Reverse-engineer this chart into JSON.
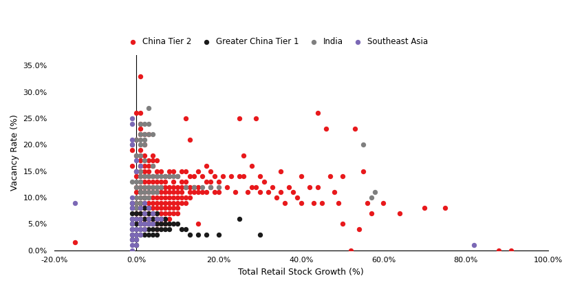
{
  "xlabel": "Total Retail Stock Growth (%)",
  "ylabel": "Vacancy Rate (%)",
  "xlim": [
    -0.2,
    1.0
  ],
  "ylim": [
    0.0,
    0.37
  ],
  "xticks": [
    -0.2,
    0.0,
    0.2,
    0.4,
    0.6,
    0.8,
    1.0
  ],
  "yticks": [
    0.0,
    0.05,
    0.1,
    0.15,
    0.2,
    0.25,
    0.3,
    0.35
  ],
  "vline_x": 0.0,
  "legend": [
    {
      "label": "China Tier 2",
      "color": "#e8191c"
    },
    {
      "label": "Greater China Tier 1",
      "color": "#1a1a1a"
    },
    {
      "label": "India",
      "color": "#7f7f7f"
    },
    {
      "label": "Southeast Asia",
      "color": "#7b68b5"
    }
  ],
  "china_tier2": [
    [
      -0.15,
      0.015
    ],
    [
      -0.01,
      0.16
    ],
    [
      -0.01,
      0.19
    ],
    [
      0.0,
      0.26
    ],
    [
      0.0,
      0.21
    ],
    [
      0.0,
      0.15
    ],
    [
      0.0,
      0.18
    ],
    [
      0.0,
      0.14
    ],
    [
      0.0,
      0.12
    ],
    [
      0.0,
      0.11
    ],
    [
      0.0,
      0.09
    ],
    [
      0.0,
      0.07
    ],
    [
      0.0,
      0.06
    ],
    [
      0.01,
      0.33
    ],
    [
      0.01,
      0.26
    ],
    [
      0.01,
      0.24
    ],
    [
      0.01,
      0.23
    ],
    [
      0.01,
      0.22
    ],
    [
      0.01,
      0.19
    ],
    [
      0.01,
      0.18
    ],
    [
      0.01,
      0.17
    ],
    [
      0.01,
      0.16
    ],
    [
      0.01,
      0.15
    ],
    [
      0.01,
      0.14
    ],
    [
      0.01,
      0.13
    ],
    [
      0.01,
      0.12
    ],
    [
      0.01,
      0.11
    ],
    [
      0.01,
      0.1
    ],
    [
      0.01,
      0.09
    ],
    [
      0.01,
      0.07
    ],
    [
      0.01,
      0.06
    ],
    [
      0.01,
      0.05
    ],
    [
      0.02,
      0.22
    ],
    [
      0.02,
      0.2
    ],
    [
      0.02,
      0.18
    ],
    [
      0.02,
      0.16
    ],
    [
      0.02,
      0.15
    ],
    [
      0.02,
      0.14
    ],
    [
      0.02,
      0.13
    ],
    [
      0.02,
      0.12
    ],
    [
      0.02,
      0.11
    ],
    [
      0.02,
      0.1
    ],
    [
      0.02,
      0.09
    ],
    [
      0.02,
      0.08
    ],
    [
      0.02,
      0.07
    ],
    [
      0.02,
      0.06
    ],
    [
      0.02,
      0.05
    ],
    [
      0.02,
      0.04
    ],
    [
      0.03,
      0.22
    ],
    [
      0.03,
      0.17
    ],
    [
      0.03,
      0.16
    ],
    [
      0.03,
      0.15
    ],
    [
      0.03,
      0.14
    ],
    [
      0.03,
      0.13
    ],
    [
      0.03,
      0.12
    ],
    [
      0.03,
      0.11
    ],
    [
      0.03,
      0.1
    ],
    [
      0.03,
      0.09
    ],
    [
      0.03,
      0.08
    ],
    [
      0.03,
      0.07
    ],
    [
      0.03,
      0.06
    ],
    [
      0.03,
      0.05
    ],
    [
      0.04,
      0.18
    ],
    [
      0.04,
      0.17
    ],
    [
      0.04,
      0.16
    ],
    [
      0.04,
      0.14
    ],
    [
      0.04,
      0.13
    ],
    [
      0.04,
      0.12
    ],
    [
      0.04,
      0.11
    ],
    [
      0.04,
      0.1
    ],
    [
      0.04,
      0.09
    ],
    [
      0.04,
      0.08
    ],
    [
      0.04,
      0.07
    ],
    [
      0.04,
      0.06
    ],
    [
      0.04,
      0.05
    ],
    [
      0.05,
      0.17
    ],
    [
      0.05,
      0.15
    ],
    [
      0.05,
      0.14
    ],
    [
      0.05,
      0.13
    ],
    [
      0.05,
      0.12
    ],
    [
      0.05,
      0.11
    ],
    [
      0.05,
      0.1
    ],
    [
      0.05,
      0.09
    ],
    [
      0.05,
      0.08
    ],
    [
      0.05,
      0.07
    ],
    [
      0.05,
      0.06
    ],
    [
      0.05,
      0.05
    ],
    [
      0.05,
      0.04
    ],
    [
      0.06,
      0.15
    ],
    [
      0.06,
      0.13
    ],
    [
      0.06,
      0.12
    ],
    [
      0.06,
      0.11
    ],
    [
      0.06,
      0.1
    ],
    [
      0.06,
      0.09
    ],
    [
      0.06,
      0.08
    ],
    [
      0.06,
      0.07
    ],
    [
      0.06,
      0.06
    ],
    [
      0.06,
      0.05
    ],
    [
      0.07,
      0.14
    ],
    [
      0.07,
      0.13
    ],
    [
      0.07,
      0.12
    ],
    [
      0.07,
      0.11
    ],
    [
      0.07,
      0.1
    ],
    [
      0.07,
      0.09
    ],
    [
      0.07,
      0.08
    ],
    [
      0.07,
      0.07
    ],
    [
      0.07,
      0.06
    ],
    [
      0.07,
      0.05
    ],
    [
      0.08,
      0.15
    ],
    [
      0.08,
      0.14
    ],
    [
      0.08,
      0.12
    ],
    [
      0.08,
      0.11
    ],
    [
      0.08,
      0.1
    ],
    [
      0.08,
      0.09
    ],
    [
      0.08,
      0.08
    ],
    [
      0.08,
      0.07
    ],
    [
      0.08,
      0.06
    ],
    [
      0.09,
      0.15
    ],
    [
      0.09,
      0.13
    ],
    [
      0.09,
      0.12
    ],
    [
      0.09,
      0.11
    ],
    [
      0.09,
      0.1
    ],
    [
      0.09,
      0.09
    ],
    [
      0.09,
      0.08
    ],
    [
      0.09,
      0.07
    ],
    [
      0.1,
      0.14
    ],
    [
      0.1,
      0.12
    ],
    [
      0.1,
      0.11
    ],
    [
      0.1,
      0.1
    ],
    [
      0.1,
      0.09
    ],
    [
      0.1,
      0.08
    ],
    [
      0.1,
      0.07
    ],
    [
      0.11,
      0.15
    ],
    [
      0.11,
      0.13
    ],
    [
      0.11,
      0.12
    ],
    [
      0.11,
      0.11
    ],
    [
      0.11,
      0.1
    ],
    [
      0.11,
      0.09
    ],
    [
      0.12,
      0.25
    ],
    [
      0.12,
      0.15
    ],
    [
      0.12,
      0.13
    ],
    [
      0.12,
      0.12
    ],
    [
      0.12,
      0.1
    ],
    [
      0.12,
      0.09
    ],
    [
      0.13,
      0.21
    ],
    [
      0.13,
      0.14
    ],
    [
      0.13,
      0.12
    ],
    [
      0.13,
      0.11
    ],
    [
      0.13,
      0.1
    ],
    [
      0.14,
      0.14
    ],
    [
      0.14,
      0.12
    ],
    [
      0.14,
      0.11
    ],
    [
      0.15,
      0.15
    ],
    [
      0.15,
      0.12
    ],
    [
      0.15,
      0.11
    ],
    [
      0.15,
      0.05
    ],
    [
      0.16,
      0.14
    ],
    [
      0.16,
      0.11
    ],
    [
      0.17,
      0.16
    ],
    [
      0.17,
      0.13
    ],
    [
      0.17,
      0.11
    ],
    [
      0.18,
      0.15
    ],
    [
      0.18,
      0.13
    ],
    [
      0.18,
      0.12
    ],
    [
      0.19,
      0.14
    ],
    [
      0.19,
      0.11
    ],
    [
      0.2,
      0.13
    ],
    [
      0.2,
      0.11
    ],
    [
      0.21,
      0.14
    ],
    [
      0.22,
      0.12
    ],
    [
      0.23,
      0.14
    ],
    [
      0.24,
      0.11
    ],
    [
      0.25,
      0.25
    ],
    [
      0.25,
      0.14
    ],
    [
      0.26,
      0.18
    ],
    [
      0.26,
      0.14
    ],
    [
      0.27,
      0.11
    ],
    [
      0.28,
      0.16
    ],
    [
      0.28,
      0.12
    ],
    [
      0.29,
      0.25
    ],
    [
      0.29,
      0.12
    ],
    [
      0.3,
      0.14
    ],
    [
      0.3,
      0.11
    ],
    [
      0.31,
      0.13
    ],
    [
      0.32,
      0.11
    ],
    [
      0.33,
      0.12
    ],
    [
      0.34,
      0.1
    ],
    [
      0.35,
      0.15
    ],
    [
      0.35,
      0.11
    ],
    [
      0.36,
      0.09
    ],
    [
      0.37,
      0.12
    ],
    [
      0.38,
      0.11
    ],
    [
      0.39,
      0.1
    ],
    [
      0.4,
      0.14
    ],
    [
      0.4,
      0.09
    ],
    [
      0.42,
      0.12
    ],
    [
      0.43,
      0.09
    ],
    [
      0.44,
      0.26
    ],
    [
      0.44,
      0.12
    ],
    [
      0.45,
      0.09
    ],
    [
      0.46,
      0.23
    ],
    [
      0.47,
      0.14
    ],
    [
      0.48,
      0.11
    ],
    [
      0.49,
      0.09
    ],
    [
      0.5,
      0.14
    ],
    [
      0.5,
      0.05
    ],
    [
      0.52,
      0.0
    ],
    [
      0.53,
      0.23
    ],
    [
      0.54,
      0.04
    ],
    [
      0.55,
      0.15
    ],
    [
      0.56,
      0.09
    ],
    [
      0.57,
      0.07
    ],
    [
      0.6,
      0.09
    ],
    [
      0.64,
      0.07
    ],
    [
      0.7,
      0.08
    ],
    [
      0.75,
      0.08
    ],
    [
      0.88,
      0.0
    ],
    [
      0.91,
      0.0
    ]
  ],
  "greater_china_tier1": [
    [
      -0.01,
      0.09
    ],
    [
      -0.01,
      0.08
    ],
    [
      -0.01,
      0.07
    ],
    [
      -0.01,
      0.06
    ],
    [
      -0.01,
      0.05
    ],
    [
      -0.01,
      0.04
    ],
    [
      -0.01,
      0.03
    ],
    [
      -0.01,
      0.02
    ],
    [
      0.0,
      0.08
    ],
    [
      0.0,
      0.07
    ],
    [
      0.0,
      0.06
    ],
    [
      0.0,
      0.05
    ],
    [
      0.0,
      0.04
    ],
    [
      0.0,
      0.03
    ],
    [
      0.0,
      0.02
    ],
    [
      0.0,
      0.01
    ],
    [
      0.01,
      0.11
    ],
    [
      0.01,
      0.09
    ],
    [
      0.01,
      0.08
    ],
    [
      0.01,
      0.07
    ],
    [
      0.01,
      0.06
    ],
    [
      0.01,
      0.05
    ],
    [
      0.01,
      0.04
    ],
    [
      0.01,
      0.03
    ],
    [
      0.02,
      0.1
    ],
    [
      0.02,
      0.08
    ],
    [
      0.02,
      0.07
    ],
    [
      0.02,
      0.06
    ],
    [
      0.02,
      0.05
    ],
    [
      0.02,
      0.04
    ],
    [
      0.02,
      0.03
    ],
    [
      0.03,
      0.08
    ],
    [
      0.03,
      0.07
    ],
    [
      0.03,
      0.06
    ],
    [
      0.03,
      0.05
    ],
    [
      0.03,
      0.04
    ],
    [
      0.03,
      0.03
    ],
    [
      0.04,
      0.07
    ],
    [
      0.04,
      0.06
    ],
    [
      0.04,
      0.05
    ],
    [
      0.04,
      0.04
    ],
    [
      0.04,
      0.03
    ],
    [
      0.05,
      0.07
    ],
    [
      0.05,
      0.06
    ],
    [
      0.05,
      0.05
    ],
    [
      0.05,
      0.04
    ],
    [
      0.05,
      0.03
    ],
    [
      0.06,
      0.06
    ],
    [
      0.06,
      0.05
    ],
    [
      0.06,
      0.04
    ],
    [
      0.07,
      0.06
    ],
    [
      0.07,
      0.05
    ],
    [
      0.07,
      0.04
    ],
    [
      0.08,
      0.05
    ],
    [
      0.08,
      0.04
    ],
    [
      0.09,
      0.05
    ],
    [
      0.1,
      0.05
    ],
    [
      0.11,
      0.04
    ],
    [
      0.12,
      0.04
    ],
    [
      0.13,
      0.03
    ],
    [
      0.15,
      0.03
    ],
    [
      0.17,
      0.03
    ],
    [
      0.2,
      0.03
    ],
    [
      0.25,
      0.06
    ],
    [
      0.3,
      0.03
    ]
  ],
  "india": [
    [
      -0.01,
      0.13
    ],
    [
      -0.01,
      0.2
    ],
    [
      0.0,
      0.21
    ],
    [
      0.0,
      0.18
    ],
    [
      0.0,
      0.15
    ],
    [
      0.0,
      0.13
    ],
    [
      0.0,
      0.12
    ],
    [
      0.0,
      0.1
    ],
    [
      0.0,
      0.09
    ],
    [
      0.0,
      0.08
    ],
    [
      0.01,
      0.24
    ],
    [
      0.01,
      0.22
    ],
    [
      0.01,
      0.21
    ],
    [
      0.01,
      0.2
    ],
    [
      0.01,
      0.18
    ],
    [
      0.01,
      0.16
    ],
    [
      0.01,
      0.15
    ],
    [
      0.01,
      0.14
    ],
    [
      0.01,
      0.13
    ],
    [
      0.01,
      0.12
    ],
    [
      0.01,
      0.11
    ],
    [
      0.01,
      0.1
    ],
    [
      0.01,
      0.09
    ],
    [
      0.02,
      0.24
    ],
    [
      0.02,
      0.22
    ],
    [
      0.02,
      0.21
    ],
    [
      0.02,
      0.2
    ],
    [
      0.02,
      0.17
    ],
    [
      0.02,
      0.14
    ],
    [
      0.02,
      0.12
    ],
    [
      0.02,
      0.11
    ],
    [
      0.02,
      0.1
    ],
    [
      0.03,
      0.27
    ],
    [
      0.03,
      0.24
    ],
    [
      0.03,
      0.22
    ],
    [
      0.03,
      0.14
    ],
    [
      0.03,
      0.12
    ],
    [
      0.03,
      0.11
    ],
    [
      0.03,
      0.1
    ],
    [
      0.04,
      0.22
    ],
    [
      0.04,
      0.16
    ],
    [
      0.04,
      0.14
    ],
    [
      0.04,
      0.12
    ],
    [
      0.04,
      0.11
    ],
    [
      0.05,
      0.14
    ],
    [
      0.05,
      0.12
    ],
    [
      0.05,
      0.11
    ],
    [
      0.06,
      0.14
    ],
    [
      0.06,
      0.12
    ],
    [
      0.07,
      0.14
    ],
    [
      0.08,
      0.14
    ],
    [
      0.09,
      0.14
    ],
    [
      0.1,
      0.14
    ],
    [
      0.12,
      0.12
    ],
    [
      0.14,
      0.12
    ],
    [
      0.16,
      0.12
    ],
    [
      0.18,
      0.12
    ],
    [
      0.2,
      0.12
    ],
    [
      0.55,
      0.2
    ],
    [
      0.57,
      0.1
    ],
    [
      0.58,
      0.11
    ]
  ],
  "southeast_asia": [
    [
      -0.15,
      0.09
    ],
    [
      -0.01,
      0.25
    ],
    [
      -0.01,
      0.24
    ],
    [
      -0.01,
      0.21
    ],
    [
      -0.01,
      0.2
    ],
    [
      -0.01,
      0.1
    ],
    [
      -0.01,
      0.09
    ],
    [
      -0.01,
      0.08
    ],
    [
      -0.01,
      0.06
    ],
    [
      -0.01,
      0.05
    ],
    [
      -0.01,
      0.04
    ],
    [
      -0.01,
      0.03
    ],
    [
      -0.01,
      0.02
    ],
    [
      -0.01,
      0.01
    ],
    [
      -0.01,
      0.0
    ],
    [
      0.0,
      0.17
    ],
    [
      0.0,
      0.15
    ],
    [
      0.0,
      0.06
    ],
    [
      0.0,
      0.04
    ],
    [
      0.0,
      0.03
    ],
    [
      0.0,
      0.02
    ],
    [
      0.0,
      0.01
    ],
    [
      0.01,
      0.16
    ],
    [
      0.01,
      0.08
    ],
    [
      0.01,
      0.06
    ],
    [
      0.01,
      0.05
    ],
    [
      0.01,
      0.04
    ],
    [
      0.01,
      0.03
    ],
    [
      0.02,
      0.09
    ],
    [
      0.02,
      0.07
    ],
    [
      0.02,
      0.05
    ],
    [
      0.02,
      0.04
    ],
    [
      0.03,
      0.08
    ],
    [
      0.03,
      0.06
    ],
    [
      0.03,
      0.05
    ],
    [
      0.04,
      0.07
    ],
    [
      0.04,
      0.05
    ],
    [
      0.05,
      0.06
    ],
    [
      0.06,
      0.06
    ],
    [
      0.82,
      0.01
    ]
  ]
}
